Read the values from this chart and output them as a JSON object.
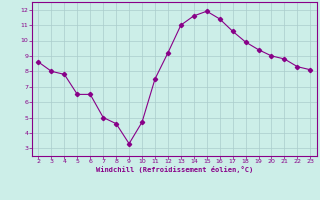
{
  "x": [
    2,
    3,
    4,
    5,
    6,
    7,
    8,
    9,
    10,
    11,
    12,
    13,
    14,
    15,
    16,
    17,
    18,
    19,
    20,
    21,
    22,
    23
  ],
  "y": [
    8.6,
    8.0,
    7.8,
    6.5,
    6.5,
    5.0,
    4.6,
    3.3,
    4.7,
    7.5,
    9.2,
    11.0,
    11.6,
    11.9,
    11.4,
    10.6,
    9.9,
    9.4,
    9.0,
    8.8,
    8.3,
    8.1
  ],
  "xlabel": "Windchill (Refroidissement éolien,°C)",
  "ylim": [
    2.5,
    12.5
  ],
  "xlim": [
    1.5,
    23.5
  ],
  "yticks": [
    3,
    4,
    5,
    6,
    7,
    8,
    9,
    10,
    11,
    12
  ],
  "xticks": [
    2,
    3,
    4,
    5,
    6,
    7,
    8,
    9,
    10,
    11,
    12,
    13,
    14,
    15,
    16,
    17,
    18,
    19,
    20,
    21,
    22,
    23
  ],
  "line_color": "#880088",
  "marker": "D",
  "marker_size": 2.2,
  "bg_color": "#cceee8",
  "grid_color": "#aacccc",
  "xlabel_color": "#880088",
  "tick_color": "#880088",
  "border_color": "#880088"
}
